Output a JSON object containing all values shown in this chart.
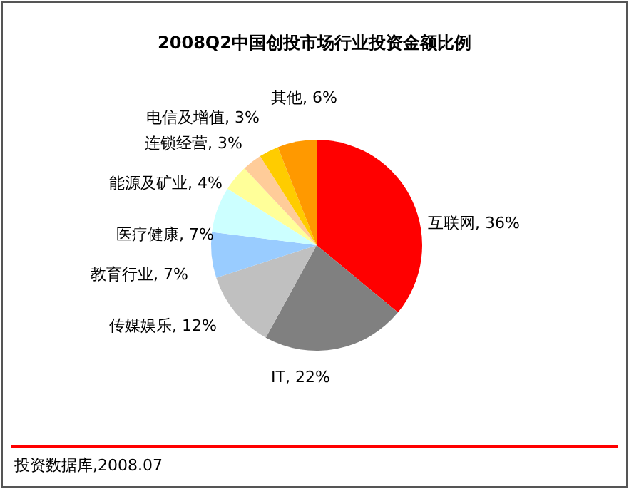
{
  "chart_data": {
    "type": "pie",
    "title": "2008Q2中国创投市场行业投资金额比例",
    "categories": [
      "互联网",
      "IT",
      "传媒娱乐",
      "教育行业",
      "医疗健康",
      "能源及矿业",
      "连锁经营",
      "电信及增值",
      "其他"
    ],
    "values": [
      36,
      22,
      12,
      7,
      7,
      4,
      3,
      3,
      6
    ],
    "value_labels": [
      "36%",
      "22%",
      "12%",
      "7%",
      "7%",
      "4%",
      "3%",
      "3%",
      "6%"
    ],
    "colors": [
      "#ff0000",
      "#808080",
      "#c0c0c0",
      "#99ccff",
      "#ccffff",
      "#ffff99",
      "#ffcc99",
      "#ffcc00",
      "#ff9900"
    ],
    "annotations": [
      "投资数据库,2008.07"
    ]
  }
}
